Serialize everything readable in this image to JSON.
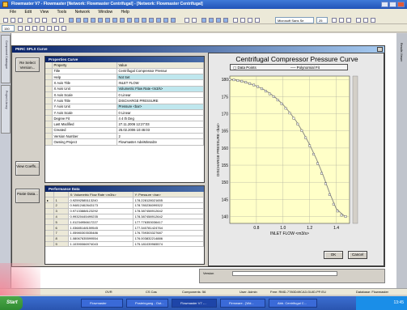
{
  "app": {
    "title": "Flowmaster V7 - Flowmaster [Network: Flowmaster Centrifugal] - [Network: Flowmaster Centrifugal]"
  },
  "menu": [
    "File",
    "Edit",
    "View",
    "Tools",
    "Network",
    "Window",
    "Help"
  ],
  "toolbar": {
    "font": "Microsoft Sans Se",
    "font_size": "25",
    "zoom": "150"
  },
  "dialog": {
    "title": "PERC SPLX Curve"
  },
  "side_buttons": {
    "reselect": "Re Select Version...",
    "view": "View Coeffs...",
    "paste": "Paste Data..."
  },
  "properties": {
    "heading": "Properties Curve",
    "col_property": "Property",
    "col_value": "Value",
    "rows": [
      {
        "property": "Title",
        "value": "Centrifugal Compressor Pressur"
      },
      {
        "property": "Help",
        "value": "Not Set"
      },
      {
        "property": "X Axis Title",
        "value": "INLET FLOW"
      },
      {
        "property": "X Axis Unit",
        "value": "Volumetric Flow Rate <m3/s>"
      },
      {
        "property": "X Axis Scale",
        "value": "0 Linear"
      },
      {
        "property": "Y Axis Title",
        "value": "DISCHARGE PRESSURE"
      },
      {
        "property": "Y Axis Unit",
        "value": "Pressure <bar>"
      },
      {
        "property": "Y Axis Scale",
        "value": "0 Linear"
      },
      {
        "property": "Degree Fit",
        "value": "4 4 th Deg"
      },
      {
        "property": "Last Modified",
        "value": "27.11.2006 12:27:03"
      },
      {
        "property": "Created",
        "value": "25.02.2006 10:46:03"
      },
      {
        "property": "Version Number",
        "value": "2"
      },
      {
        "property": "Owning Project",
        "value": "Flowmaster AdeiMinsalze"
      }
    ]
  },
  "performance": {
    "heading": "Performance Data",
    "col_x": "X: Volumetric Flow Rate <m3/s>",
    "col_y": "Y: Pressure <bar>",
    "rows": [
      {
        "n": "1",
        "x": "0.92592585113240",
        "y": "178.228128021655"
      },
      {
        "n": "2",
        "x": "0.94812462643173",
        "y": "178.780236099322"
      },
      {
        "n": "3",
        "x": "0.97133888123292",
        "y": "178.387458912642"
      },
      {
        "n": "4",
        "x": "0.99320445499235",
        "y": "178.387458912642"
      },
      {
        "n": "5",
        "x": "1.01234956617227",
        "y": "177.776353036417"
      },
      {
        "n": "6",
        "x": "1.03685148159545",
        "y": "177.340781424764"
      },
      {
        "n": "7",
        "x": "1.05980303535486",
        "y": "176.759303327687"
      },
      {
        "n": "8",
        "x": "1.08067635599554",
        "y": "176.003832214886"
      },
      {
        "n": "9",
        "x": "1.10390066974043",
        "y": "175.181039965574"
      }
    ]
  },
  "chart_data": {
    "type": "line",
    "title": "Centrifugal Compressor Pressure Curve",
    "xlabel": "INLET FLOW <m3/s>",
    "ylabel": "DISCHARGE PRESSURE <bar>",
    "xlim": [
      0.6,
      1.5
    ],
    "ylim": [
      138,
      181
    ],
    "xticks": [
      "0.8",
      "1.0",
      "1.2",
      "1.4"
    ],
    "yticks": [
      "140",
      "145",
      "150",
      "155",
      "160",
      "165",
      "170",
      "175",
      "180"
    ],
    "grid": true,
    "legend_position": "top",
    "series": [
      {
        "name": "Data Points",
        "x": [
          0.6,
          0.63,
          0.66,
          0.69,
          0.72,
          0.75,
          0.78,
          0.81,
          0.84,
          0.87,
          0.9,
          0.93,
          0.96,
          0.99,
          1.02,
          1.05,
          1.08,
          1.11,
          1.14,
          1.17,
          1.2,
          1.23,
          1.26,
          1.29,
          1.32,
          1.35,
          1.38,
          1.41,
          1.44,
          1.47
        ],
        "y": [
          180.0,
          179.9,
          179.7,
          179.5,
          179.2,
          178.8,
          178.4,
          177.9,
          177.3,
          176.6,
          175.8,
          175.0,
          174.0,
          172.9,
          171.6,
          170.2,
          168.7,
          167.0,
          165.1,
          163.0,
          160.7,
          158.2,
          155.5,
          152.6,
          149.6,
          146.4,
          143.6,
          141.6,
          140.4,
          140.0
        ]
      },
      {
        "name": "Polynomial Fit",
        "x": [
          0.6,
          0.65,
          0.7,
          0.75,
          0.8,
          0.85,
          0.9,
          0.95,
          1.0,
          1.05,
          1.1,
          1.15,
          1.2,
          1.25,
          1.3,
          1.35,
          1.4,
          1.45,
          1.47
        ],
        "y": [
          180.0,
          179.8,
          179.4,
          178.8,
          178.1,
          177.2,
          176.0,
          174.5,
          172.7,
          170.4,
          167.8,
          164.6,
          161.0,
          156.9,
          152.2,
          146.9,
          142.3,
          140.5,
          140.0
        ]
      }
    ]
  },
  "buttons": {
    "ok": "OK",
    "cancel": "Cancel"
  },
  "properties_bar": {
    "label": "Version"
  },
  "status": {
    "ovr": "OVR",
    "cas": "CS Cas",
    "components": "Components: 56",
    "user": "User: Admin",
    "free": "Free: RMD-7780D49CA3.GUID.PF:EU",
    "database": "Database: Flowmaster"
  },
  "taskbar": {
    "start": "Start",
    "tasks": [
      "Flowmaster",
      "Posteingang - Out...",
      "Flowmaster V7 -...",
      "Firmware - [Wd...",
      "Abb. Centrifugal C..."
    ],
    "clock": "13:45"
  }
}
